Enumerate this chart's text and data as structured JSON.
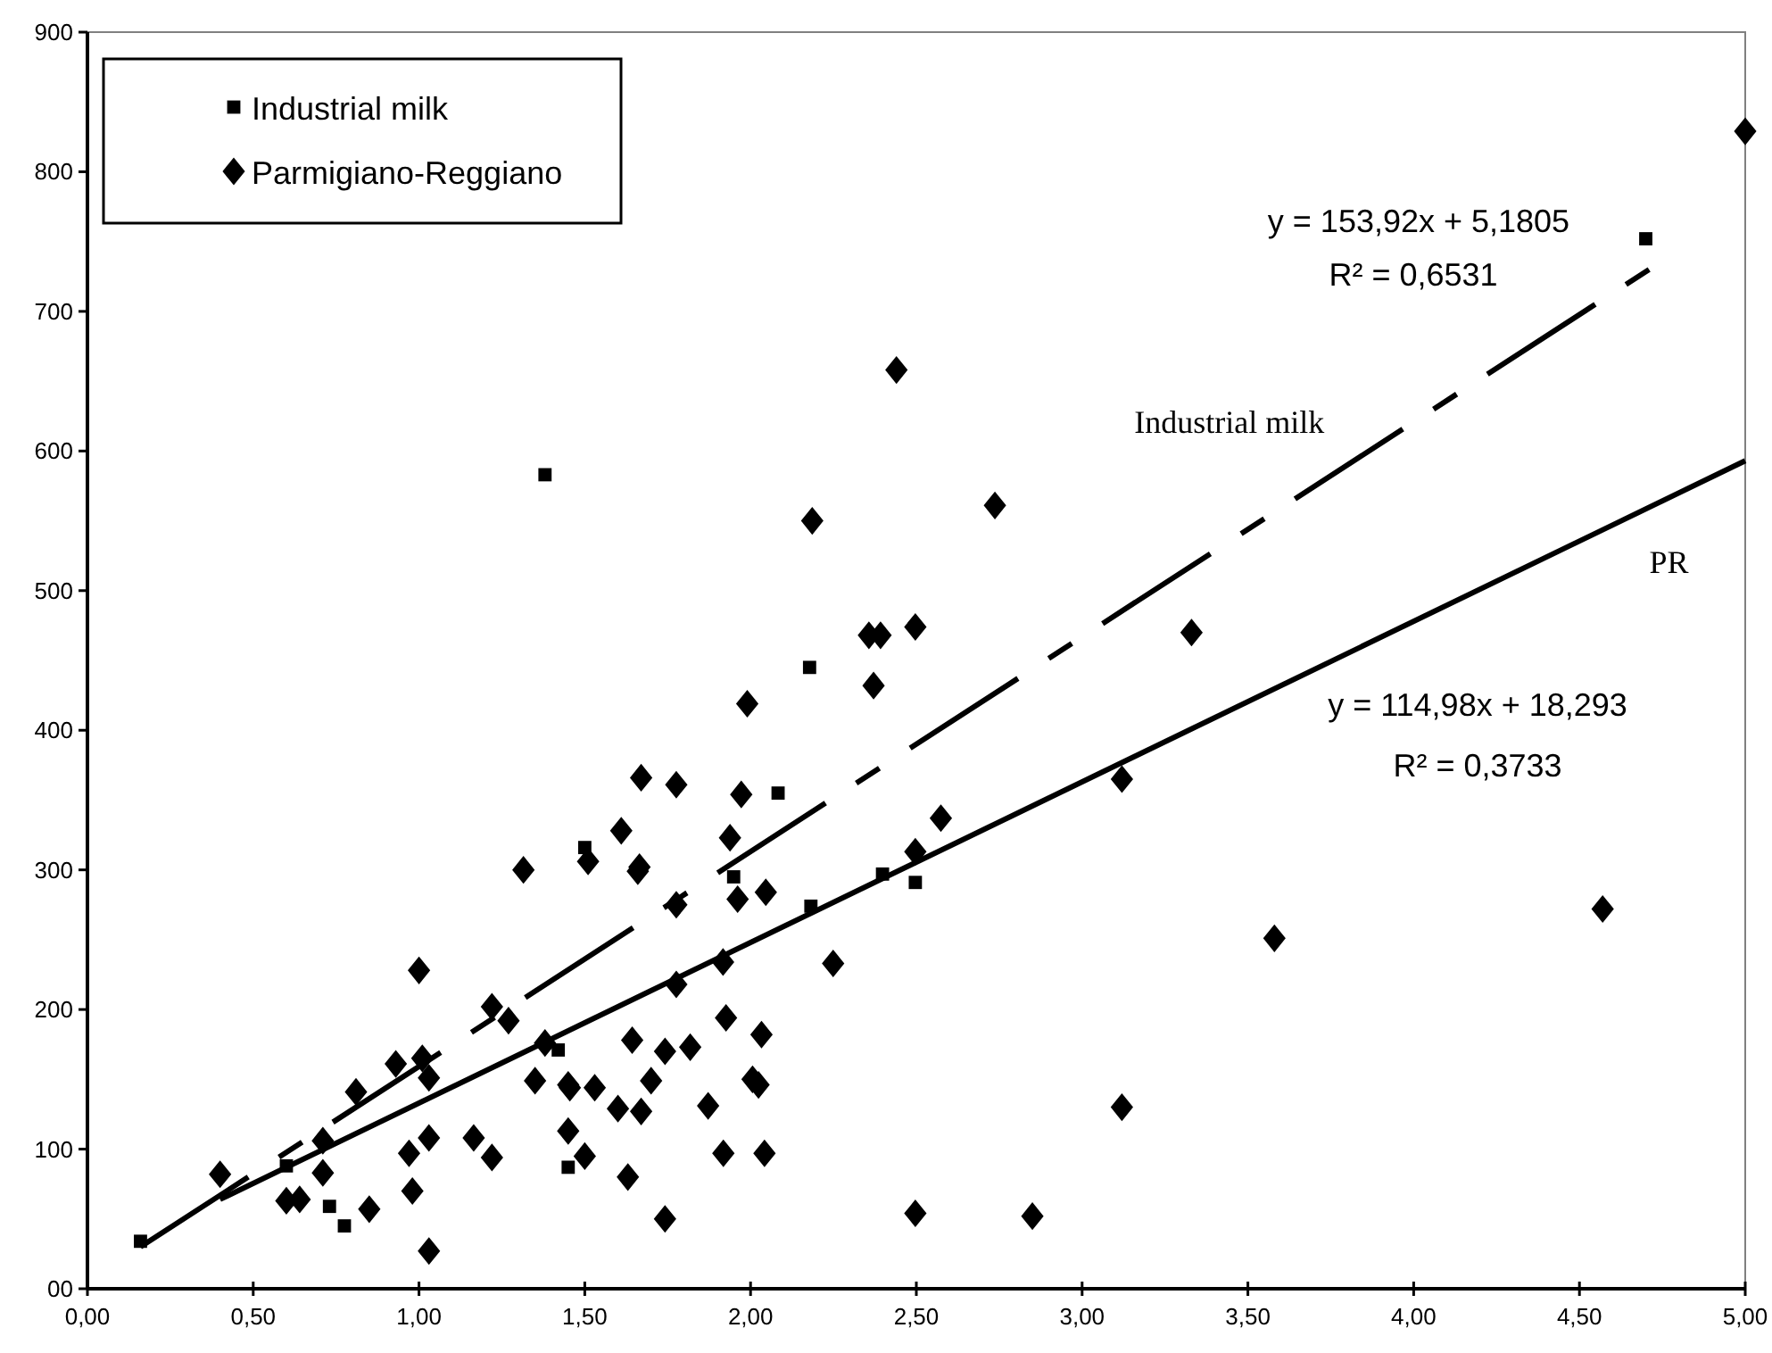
{
  "chart_data": {
    "type": "scatter",
    "xlim": [
      0,
      5
    ],
    "ylim": [
      0,
      900
    ],
    "xticks": [
      {
        "value": 0,
        "label": "0,00"
      },
      {
        "value": 0.5,
        "label": "0,50"
      },
      {
        "value": 1,
        "label": "1,00"
      },
      {
        "value": 1.5,
        "label": "1,50"
      },
      {
        "value": 2,
        "label": "2,00"
      },
      {
        "value": 2.5,
        "label": "2,50"
      },
      {
        "value": 3,
        "label": "3,00"
      },
      {
        "value": 3.5,
        "label": "3,50"
      },
      {
        "value": 4,
        "label": "4,00"
      },
      {
        "value": 4.5,
        "label": "4,50"
      },
      {
        "value": 5,
        "label": "5,00"
      }
    ],
    "yticks": [
      {
        "value": 0,
        "label": "00"
      },
      100,
      200,
      300,
      400,
      500,
      600,
      700,
      800,
      900
    ],
    "grid": false,
    "legend": "top left",
    "series": [
      {
        "name": "Industrial milk",
        "marker": "square",
        "color": "#000000",
        "x": [
          0.16,
          0.6,
          0.73,
          0.775,
          1.38,
          1.42,
          1.45,
          1.5,
          1.949,
          2.083,
          2.178,
          2.182,
          2.398,
          2.497,
          4.7
        ],
        "values": [
          34,
          88,
          59,
          45,
          583,
          171,
          87,
          316,
          295,
          355,
          445,
          274,
          297,
          291,
          752
        ]
      },
      {
        "name": "Parmigiano-Reggiano",
        "marker": "diamond",
        "color": "#000000",
        "x": [
          0.4,
          0.6,
          0.64,
          0.71,
          0.71,
          0.85,
          0.81,
          0.93,
          0.97,
          0.98,
          1.0,
          1.01,
          1.03,
          1.03,
          1.03,
          1.165,
          1.22,
          1.22,
          1.27,
          1.315,
          1.35,
          1.38,
          1.45,
          1.455,
          1.45,
          1.5,
          1.51,
          1.53,
          1.6,
          1.61,
          1.63,
          2.186,
          2.737,
          2.357,
          2.392,
          2.497,
          2.371,
          1.99,
          1.67,
          1.776,
          1.972,
          1.938,
          1.665,
          1.66,
          2.574,
          2.497,
          2.046,
          1.776,
          1.961,
          1.917,
          2.249,
          1.776,
          1.926,
          2.033,
          1.643,
          1.742,
          1.818,
          1.7,
          2.006,
          2.024,
          1.67,
          1.872,
          1.918,
          2.042,
          1.742,
          2.497,
          2.85,
          3.12,
          3.12,
          3.33,
          3.58,
          4.57,
          5.0,
          2.44
        ],
        "values": [
          82,
          63,
          64,
          106,
          83,
          57,
          141,
          161,
          97,
          70,
          228,
          165,
          151,
          108,
          27,
          108,
          94,
          202,
          192,
          300,
          149,
          176,
          146,
          144,
          113,
          95,
          306,
          144,
          129,
          328,
          80,
          550,
          561,
          468,
          468,
          474,
          432,
          419,
          366,
          361,
          354,
          323,
          302,
          299,
          337,
          313,
          284,
          275,
          279,
          234,
          233,
          218,
          194,
          182,
          178,
          170,
          173,
          149,
          150,
          146,
          127,
          131,
          97,
          97,
          50,
          54,
          52,
          365,
          130,
          470,
          251,
          272,
          829,
          658
        ]
      },
      {
        "name": "Industrial milk",
        "type": "line",
        "line_style": "dashed",
        "marker": "none",
        "color": "#000000",
        "x": [
          0.16,
          4.71
        ],
        "values": [
          30,
          730
        ]
      },
      {
        "name": "PR",
        "type": "line",
        "line_style": "solid",
        "marker": "none",
        "color": "#000000",
        "x": [
          0.4,
          5.0
        ],
        "values": [
          64,
          593
        ]
      }
    ],
    "annotations": [
      "y = 153,92x + 5,1805",
      "R² = 0,6531",
      "y = 114,98x + 18,293",
      "R² = 0,3733"
    ]
  }
}
